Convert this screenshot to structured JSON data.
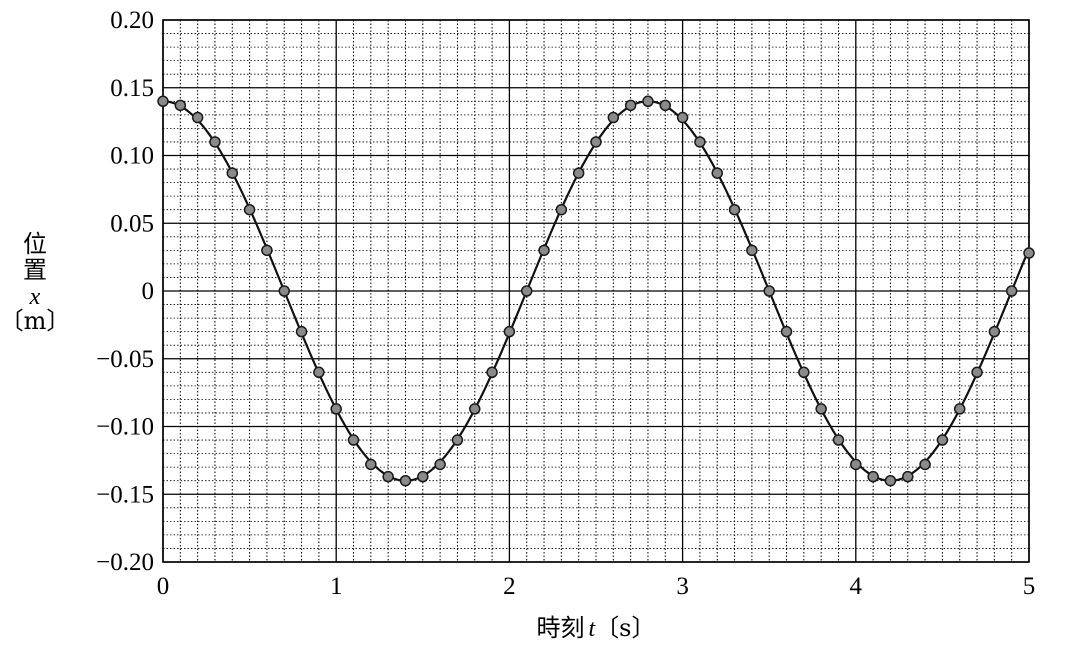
{
  "chart_data": {
    "type": "line",
    "xlabel": {
      "prefix": "時刻",
      "var": "t",
      "unit": "〔s〕"
    },
    "ylabel": {
      "line1": "位",
      "line2": "置",
      "var": "x",
      "unit": "〔m〕"
    },
    "xlim": [
      0,
      5
    ],
    "ylim": [
      -0.2,
      0.2
    ],
    "xticks": [
      0,
      1,
      2,
      3,
      4,
      5
    ],
    "xtick_labels": [
      "0",
      "1",
      "2",
      "3",
      "4",
      "5"
    ],
    "yticks": [
      0.2,
      0.15,
      0.1,
      0.05,
      0,
      -0.05,
      -0.1,
      -0.15,
      -0.2
    ],
    "ytick_labels": [
      "0.20",
      "0.15",
      "0.10",
      "0.05",
      "0",
      "−0.05",
      "−0.10",
      "−0.15",
      "−0.20"
    ],
    "grid": true,
    "minor_x_step": 0.1,
    "minor_y_step": 0.01,
    "series": [
      {
        "points": [
          [
            0.0,
            0.14
          ],
          [
            0.1,
            0.137
          ],
          [
            0.2,
            0.128
          ],
          [
            0.3,
            0.11
          ],
          [
            0.4,
            0.087
          ],
          [
            0.5,
            0.06
          ],
          [
            0.6,
            0.03
          ],
          [
            0.7,
            0.0
          ],
          [
            0.8,
            -0.03
          ],
          [
            0.9,
            -0.06
          ],
          [
            1.0,
            -0.087
          ],
          [
            1.1,
            -0.11
          ],
          [
            1.2,
            -0.128
          ],
          [
            1.3,
            -0.137
          ],
          [
            1.4,
            -0.14
          ],
          [
            1.5,
            -0.137
          ],
          [
            1.6,
            -0.128
          ],
          [
            1.7,
            -0.11
          ],
          [
            1.8,
            -0.087
          ],
          [
            1.9,
            -0.06
          ],
          [
            2.0,
            -0.03
          ],
          [
            2.1,
            0.0
          ],
          [
            2.2,
            0.03
          ],
          [
            2.3,
            0.06
          ],
          [
            2.4,
            0.087
          ],
          [
            2.5,
            0.11
          ],
          [
            2.6,
            0.128
          ],
          [
            2.7,
            0.137
          ],
          [
            2.8,
            0.14
          ],
          [
            2.9,
            0.137
          ],
          [
            3.0,
            0.128
          ],
          [
            3.1,
            0.11
          ],
          [
            3.2,
            0.087
          ],
          [
            3.3,
            0.06
          ],
          [
            3.4,
            0.03
          ],
          [
            3.5,
            0.0
          ],
          [
            3.6,
            -0.03
          ],
          [
            3.7,
            -0.06
          ],
          [
            3.8,
            -0.087
          ],
          [
            3.9,
            -0.11
          ],
          [
            4.0,
            -0.128
          ],
          [
            4.1,
            -0.137
          ],
          [
            4.2,
            -0.14
          ],
          [
            4.3,
            -0.137
          ],
          [
            4.4,
            -0.128
          ],
          [
            4.5,
            -0.11
          ],
          [
            4.6,
            -0.087
          ],
          [
            4.7,
            -0.06
          ],
          [
            4.8,
            -0.03
          ],
          [
            4.9,
            0.0
          ],
          [
            5.0,
            0.028
          ]
        ],
        "curve": {
          "amplitude": 0.14,
          "period": 2.8,
          "phase": 0
        }
      }
    ],
    "colors": {
      "line": "#111111",
      "marker_fill": "#8a8a8a",
      "marker_edge": "#1a1a1a",
      "grid": "#000000"
    }
  }
}
